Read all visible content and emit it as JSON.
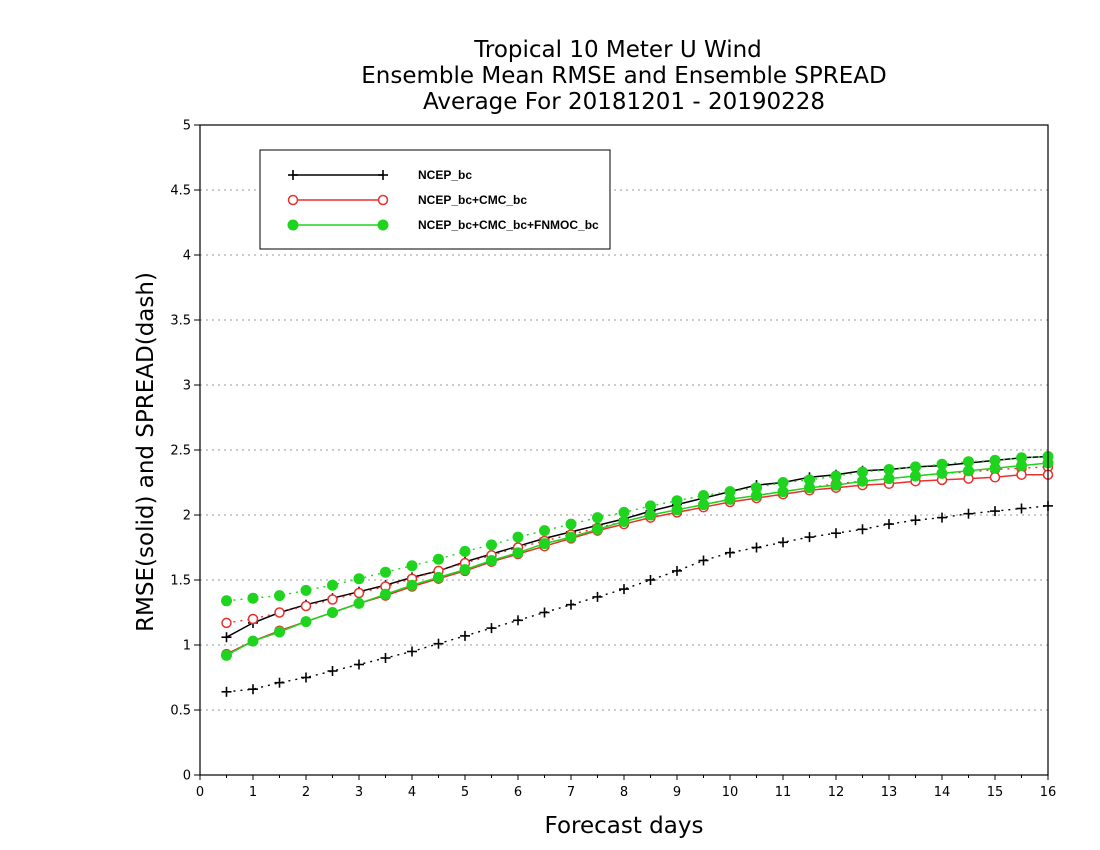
{
  "chart_data": {
    "type": "line",
    "title_lines": [
      "Tropical 10 Meter U Wind",
      "Ensemble Mean RMSE and Ensemble SPREAD",
      "Average For 20181201 - 20190228"
    ],
    "xlabel": "Forecast days",
    "ylabel": "RMSE(solid) and SPREAD(dash)",
    "xlim": [
      0,
      16
    ],
    "ylim": [
      0,
      5
    ],
    "xticks": [
      0,
      1,
      2,
      3,
      4,
      5,
      6,
      7,
      8,
      9,
      10,
      11,
      12,
      13,
      14,
      15,
      16
    ],
    "yticks": [
      0,
      0.5,
      1,
      1.5,
      2,
      2.5,
      3,
      3.5,
      4,
      4.5,
      5
    ],
    "ytick_labels": [
      "0",
      "0.5",
      "1",
      "1.5",
      "2",
      "2.5",
      "3",
      "3.5",
      "4",
      "4.5",
      "5"
    ],
    "grid": "horizontal dotted",
    "legend_position": "top-left",
    "x": [
      0.5,
      1,
      1.5,
      2,
      2.5,
      3,
      3.5,
      4,
      4.5,
      5,
      5.5,
      6,
      6.5,
      7,
      7.5,
      8,
      8.5,
      9,
      9.5,
      10,
      10.5,
      11,
      11.5,
      12,
      12.5,
      13,
      13.5,
      14,
      14.5,
      15,
      15.5,
      16
    ],
    "series": [
      {
        "name": "NCEP_bc",
        "color": "#000000",
        "marker": "plus",
        "rmse": [
          1.06,
          1.17,
          1.25,
          1.31,
          1.36,
          1.41,
          1.46,
          1.52,
          1.57,
          1.64,
          1.7,
          1.76,
          1.82,
          1.87,
          1.92,
          1.97,
          2.03,
          2.08,
          2.13,
          2.18,
          2.23,
          2.25,
          2.29,
          2.31,
          2.34,
          2.35,
          2.37,
          2.38,
          2.4,
          2.42,
          2.44,
          2.45
        ],
        "spread": [
          0.64,
          0.66,
          0.71,
          0.75,
          0.8,
          0.85,
          0.9,
          0.95,
          1.01,
          1.07,
          1.13,
          1.19,
          1.25,
          1.31,
          1.37,
          1.43,
          1.5,
          1.57,
          1.65,
          1.71,
          1.75,
          1.79,
          1.83,
          1.86,
          1.89,
          1.93,
          1.96,
          1.98,
          2.01,
          2.03,
          2.05,
          2.07
        ]
      },
      {
        "name": "NCEP_bc+CMC_bc",
        "color": "#e8302e",
        "marker": "open-circle",
        "rmse": [
          0.93,
          1.03,
          1.11,
          1.18,
          1.25,
          1.32,
          1.38,
          1.45,
          1.51,
          1.57,
          1.64,
          1.7,
          1.76,
          1.82,
          1.88,
          1.93,
          1.98,
          2.02,
          2.06,
          2.1,
          2.13,
          2.16,
          2.19,
          2.21,
          2.23,
          2.24,
          2.26,
          2.27,
          2.28,
          2.29,
          2.31,
          2.31
        ],
        "spread": [
          1.17,
          1.2,
          1.25,
          1.3,
          1.35,
          1.4,
          1.45,
          1.51,
          1.57,
          1.63,
          1.69,
          1.75,
          1.8,
          1.85,
          1.9,
          1.95,
          2.0,
          2.04,
          2.08,
          2.12,
          2.15,
          2.18,
          2.21,
          2.24,
          2.26,
          2.28,
          2.3,
          2.32,
          2.33,
          2.35,
          2.36,
          2.37
        ]
      },
      {
        "name": "NCEP_bc+CMC_bc+FNMOC_bc",
        "color": "#1ed41e",
        "marker": "filled-circle",
        "rmse": [
          0.92,
          1.03,
          1.1,
          1.18,
          1.25,
          1.32,
          1.39,
          1.46,
          1.52,
          1.58,
          1.65,
          1.71,
          1.78,
          1.83,
          1.89,
          1.95,
          2.0,
          2.04,
          2.08,
          2.12,
          2.15,
          2.18,
          2.21,
          2.23,
          2.26,
          2.28,
          2.3,
          2.32,
          2.34,
          2.36,
          2.38,
          2.4
        ],
        "spread": [
          1.34,
          1.36,
          1.38,
          1.42,
          1.46,
          1.51,
          1.56,
          1.61,
          1.66,
          1.72,
          1.77,
          1.83,
          1.88,
          1.93,
          1.98,
          2.02,
          2.07,
          2.11,
          2.15,
          2.18,
          2.21,
          2.25,
          2.27,
          2.3,
          2.33,
          2.35,
          2.37,
          2.39,
          2.41,
          2.42,
          2.44,
          2.45
        ]
      }
    ]
  }
}
